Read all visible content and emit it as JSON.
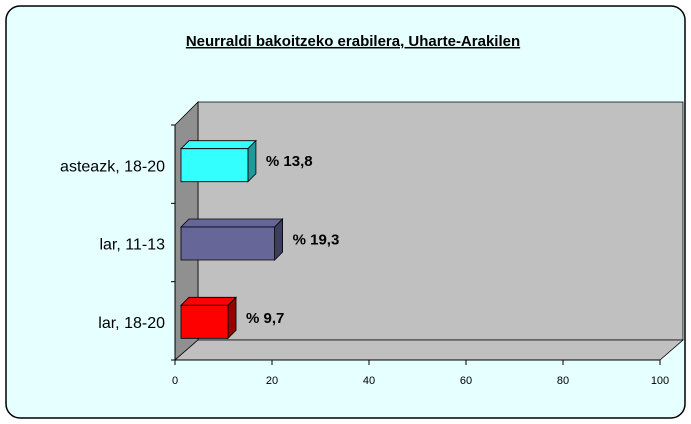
{
  "chart_data": {
    "type": "bar3d_horizontal",
    "title": "Neurraldi bakoitzeko erabilera, Uharte-Arakilen",
    "categories": [
      "asteazk, 18-20",
      "lar, 11-13",
      "lar, 18-20"
    ],
    "series": [
      {
        "name": null,
        "colors": [
          "#33ffff",
          "#666699",
          "#ff0000"
        ],
        "values": [
          13.8,
          19.3,
          9.7
        ],
        "value_labels": [
          "% 13,8",
          "% 19,3",
          "% 9,7"
        ]
      }
    ],
    "xlim": [
      0,
      100
    ],
    "xticks": [
      0,
      20,
      40,
      60,
      80,
      100
    ],
    "grid": false
  }
}
